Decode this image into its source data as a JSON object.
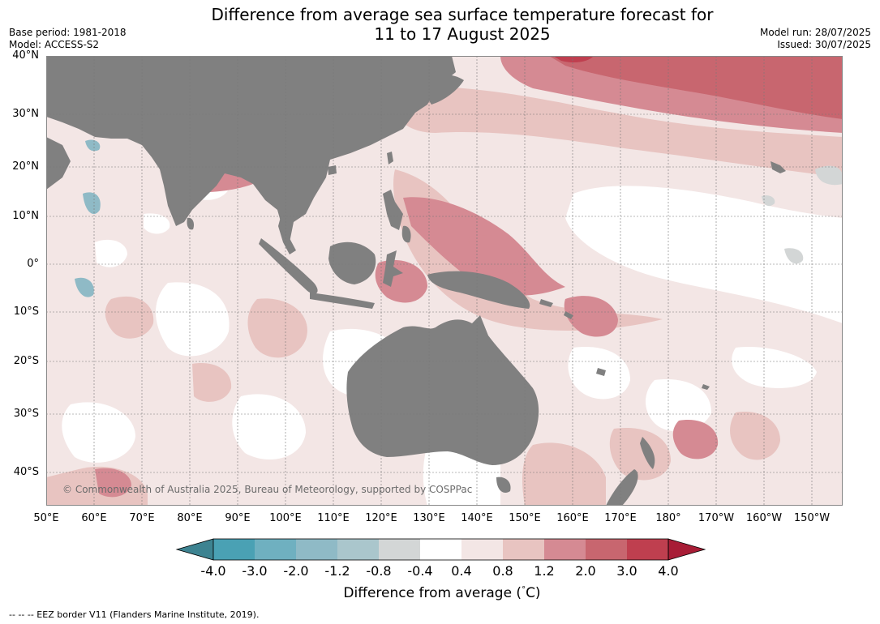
{
  "title_line1": "Difference from average sea surface temperature forecast for",
  "title_line2": "11 to 17 August 2025",
  "base_period": "Base period: 1981-2018",
  "model": "Model: ACCESS-S2",
  "model_run": "Model run: 28/07/2025",
  "issued": "Issued: 30/07/2025",
  "copyright": "© Commonwealth of Australia 2025, Bureau of Meteorology, supported by COSPPac",
  "lat_labels": [
    "40°N",
    "30°N",
    "20°N",
    "10°N",
    "0°",
    "10°S",
    "20°S",
    "30°S",
    "40°S"
  ],
  "lon_labels": [
    "50°E",
    "60°E",
    "70°E",
    "80°E",
    "90°E",
    "100°E",
    "110°E",
    "120°E",
    "130°E",
    "140°E",
    "150°E",
    "160°E",
    "170°E",
    "180°",
    "170°W",
    "160°W",
    "150°W"
  ],
  "legend": {
    "ticks": [
      "-4.0",
      "-3.0",
      "-2.0",
      "-1.2",
      "-0.8",
      "-0.4",
      "0.4",
      "0.8",
      "1.2",
      "2.0",
      "3.0",
      "4.0"
    ],
    "colors": [
      "#3d8391",
      "#4aa1b4",
      "#6fb0c0",
      "#8fbac6",
      "#aac6cc",
      "#d3d6d6",
      "#ffffff",
      "#f3e6e5",
      "#e8c4c1",
      "#d58a93",
      "#c8666f",
      "#bf3f4f",
      "#a81d36"
    ],
    "label": "Difference from average ($^\\circ$C)",
    "label_main": "Difference from average (",
    "label_deg": "°",
    "label_unit": "C)"
  },
  "footnote": "--  --  -- EEZ border V11 (Flanders Marine Institute, 2019).",
  "colors": {
    "land": "#808080",
    "ocean_base": "#f3e6e5"
  }
}
